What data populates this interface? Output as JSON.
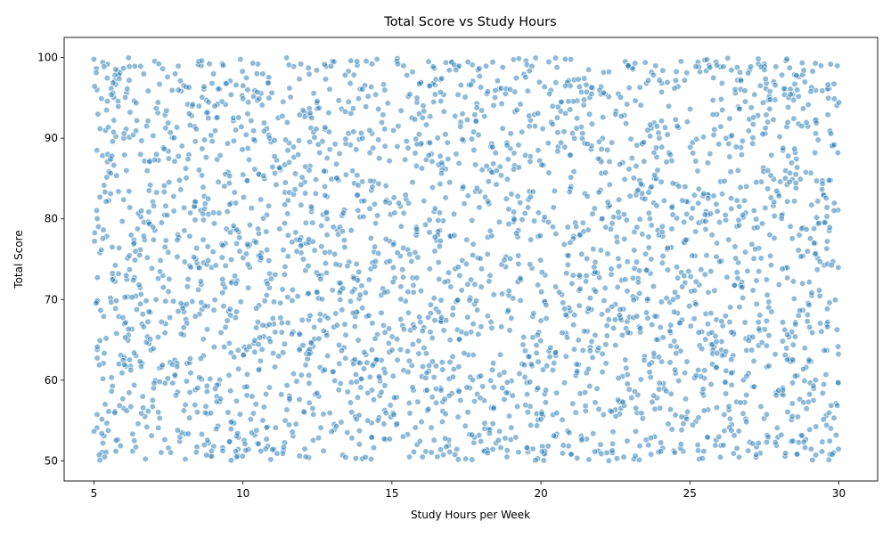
{
  "chart_data": {
    "type": "scatter",
    "title": "Total Score vs Study Hours",
    "xlabel": "Study Hours per Week",
    "ylabel": "Total Score",
    "xlim": [
      4.0,
      31.3
    ],
    "ylim": [
      47.5,
      102.5
    ],
    "x_ticks": [
      5,
      10,
      15,
      20,
      25,
      30
    ],
    "y_ticks": [
      50,
      60,
      70,
      80,
      90,
      100
    ],
    "x_tick_labels": [
      "5",
      "10",
      "15",
      "20",
      "25",
      "30"
    ],
    "y_tick_labels": [
      "50",
      "60",
      "70",
      "80",
      "90",
      "100"
    ],
    "grid": false,
    "legend": "none",
    "marker_color": "#1f77b4",
    "marker_alpha": 0.5,
    "marker_edge_color": "#ffffff",
    "point_count": 3000,
    "x_range": [
      5.0,
      30.0
    ],
    "y_range": [
      50.0,
      100.0
    ],
    "points": [
      [
        5.0,
        99.8
      ],
      [
        5.1,
        96.0
      ],
      [
        5.1,
        88.5
      ],
      [
        5.2,
        82.7
      ],
      [
        5.2,
        75.8
      ],
      [
        5.1,
        69.7
      ],
      [
        5.2,
        64.9
      ],
      [
        5.1,
        54.1
      ],
      [
        5.3,
        52.2
      ],
      [
        5.2,
        50.1
      ],
      [
        5.8,
        98.3
      ],
      [
        6.0,
        90.0
      ],
      [
        6.2,
        81.4
      ],
      [
        6.1,
        72.5
      ],
      [
        5.9,
        63.1
      ],
      [
        6.0,
        56.5
      ],
      [
        6.3,
        51.2
      ],
      [
        7.2,
        96.7
      ],
      [
        7.1,
        88.0
      ],
      [
        7.0,
        77.4
      ],
      [
        7.4,
        69.8
      ],
      [
        7.2,
        61.5
      ],
      [
        7.5,
        51.6
      ],
      [
        8.6,
        99.0
      ],
      [
        8.4,
        89.6
      ],
      [
        8.7,
        82.8
      ],
      [
        8.5,
        74.0
      ],
      [
        8.8,
        66.3
      ],
      [
        8.4,
        58.8
      ],
      [
        8.9,
        50.6
      ],
      [
        9.6,
        95.4
      ],
      [
        9.5,
        85.8
      ],
      [
        9.7,
        78.8
      ],
      [
        9.4,
        71.5
      ],
      [
        9.6,
        63.4
      ],
      [
        9.5,
        56.0
      ],
      [
        10.5,
        99.2
      ],
      [
        10.8,
        91.2
      ],
      [
        10.6,
        82.4
      ],
      [
        10.9,
        73.2
      ],
      [
        10.7,
        65.4
      ],
      [
        10.4,
        53.2
      ],
      [
        11.6,
        95.1
      ],
      [
        11.4,
        86.7
      ],
      [
        11.8,
        77.4
      ],
      [
        11.5,
        70.3
      ],
      [
        11.7,
        60.8
      ],
      [
        11.9,
        50.6
      ],
      [
        12.8,
        98.9
      ],
      [
        12.4,
        90.1
      ],
      [
        12.3,
        80.9
      ],
      [
        12.1,
        73.6
      ],
      [
        12.4,
        65.1
      ],
      [
        12.7,
        55.8
      ],
      [
        13.6,
        96.8
      ],
      [
        13.8,
        88.6
      ],
      [
        13.4,
        81.1
      ],
      [
        13.9,
        70.1
      ],
      [
        13.7,
        62.4
      ],
      [
        13.5,
        53.5
      ],
      [
        14.5,
        99.8
      ],
      [
        14.7,
        92.9
      ],
      [
        14.8,
        84.1
      ],
      [
        14.4,
        75.9
      ],
      [
        14.9,
        66.4
      ],
      [
        14.6,
        59.9
      ],
      [
        14.3,
        50.2
      ],
      [
        15.5,
        97.8
      ],
      [
        15.8,
        89.9
      ],
      [
        15.4,
        80.7
      ],
      [
        15.7,
        72.7
      ],
      [
        15.9,
        63.3
      ],
      [
        15.6,
        55.9
      ],
      [
        16.4,
        94.5
      ],
      [
        16.8,
        86.2
      ],
      [
        16.6,
        76.6
      ],
      [
        16.3,
        68.3
      ],
      [
        16.7,
        61.3
      ],
      [
        16.9,
        51.9
      ],
      [
        17.7,
        99.1
      ],
      [
        17.4,
        89.7
      ],
      [
        17.8,
        83.4
      ],
      [
        17.5,
        74.4
      ],
      [
        17.9,
        65.7
      ],
      [
        17.3,
        57.5
      ],
      [
        18.6,
        96.1
      ],
      [
        18.9,
        87.4
      ],
      [
        18.3,
        78.5
      ],
      [
        18.7,
        70.7
      ],
      [
        18.4,
        62.1
      ],
      [
        18.8,
        52.8
      ],
      [
        19.5,
        99.6
      ],
      [
        19.8,
        91.5
      ],
      [
        19.3,
        82.0
      ],
      [
        19.7,
        73.9
      ],
      [
        19.4,
        64.4
      ],
      [
        19.9,
        55.1
      ],
      [
        20.5,
        96.9
      ],
      [
        20.8,
        88.9
      ],
      [
        20.4,
        79.0
      ],
      [
        20.7,
        70.6
      ],
      [
        20.3,
        62.9
      ],
      [
        20.9,
        53.7
      ],
      [
        21.6,
        98.5
      ],
      [
        21.4,
        90.6
      ],
      [
        21.8,
        81.3
      ],
      [
        21.3,
        72.8
      ],
      [
        21.7,
        64.8
      ],
      [
        21.5,
        56.2
      ],
      [
        22.6,
        95.5
      ],
      [
        22.3,
        87.1
      ],
      [
        22.8,
        77.5
      ],
      [
        22.5,
        69.4
      ],
      [
        22.9,
        60.7
      ],
      [
        22.4,
        51.0
      ],
      [
        23.5,
        99.4
      ],
      [
        23.8,
        91.9
      ],
      [
        23.4,
        82.6
      ],
      [
        23.7,
        75.0
      ],
      [
        23.3,
        66.6
      ],
      [
        23.9,
        57.8
      ],
      [
        24.6,
        96.4
      ],
      [
        24.3,
        88.2
      ],
      [
        24.8,
        79.6
      ],
      [
        24.5,
        70.9
      ],
      [
        24.9,
        62.3
      ],
      [
        24.4,
        53.9
      ],
      [
        25.5,
        99.7
      ],
      [
        25.8,
        90.4
      ],
      [
        25.3,
        83.7
      ],
      [
        25.7,
        73.5
      ],
      [
        25.4,
        66.0
      ],
      [
        25.9,
        56.6
      ],
      [
        26.6,
        97.2
      ],
      [
        26.3,
        89.3
      ],
      [
        26.8,
        80.2
      ],
      [
        26.5,
        71.8
      ],
      [
        26.9,
        63.7
      ],
      [
        26.4,
        54.5
      ],
      [
        27.5,
        99.2
      ],
      [
        27.8,
        92.3
      ],
      [
        27.4,
        84.6
      ],
      [
        27.7,
        75.4
      ],
      [
        27.3,
        67.2
      ],
      [
        27.9,
        58.5
      ],
      [
        28.6,
        96.0
      ],
      [
        28.3,
        87.8
      ],
      [
        28.8,
        78.9
      ],
      [
        28.5,
        70.1
      ],
      [
        28.9,
        61.6
      ],
      [
        28.4,
        52.4
      ],
      [
        29.4,
        99.0
      ],
      [
        29.7,
        90.9
      ],
      [
        29.5,
        82.9
      ],
      [
        29.8,
        74.7
      ],
      [
        29.6,
        66.9
      ],
      [
        29.9,
        57.1
      ],
      [
        29.7,
        50.8
      ]
    ]
  }
}
